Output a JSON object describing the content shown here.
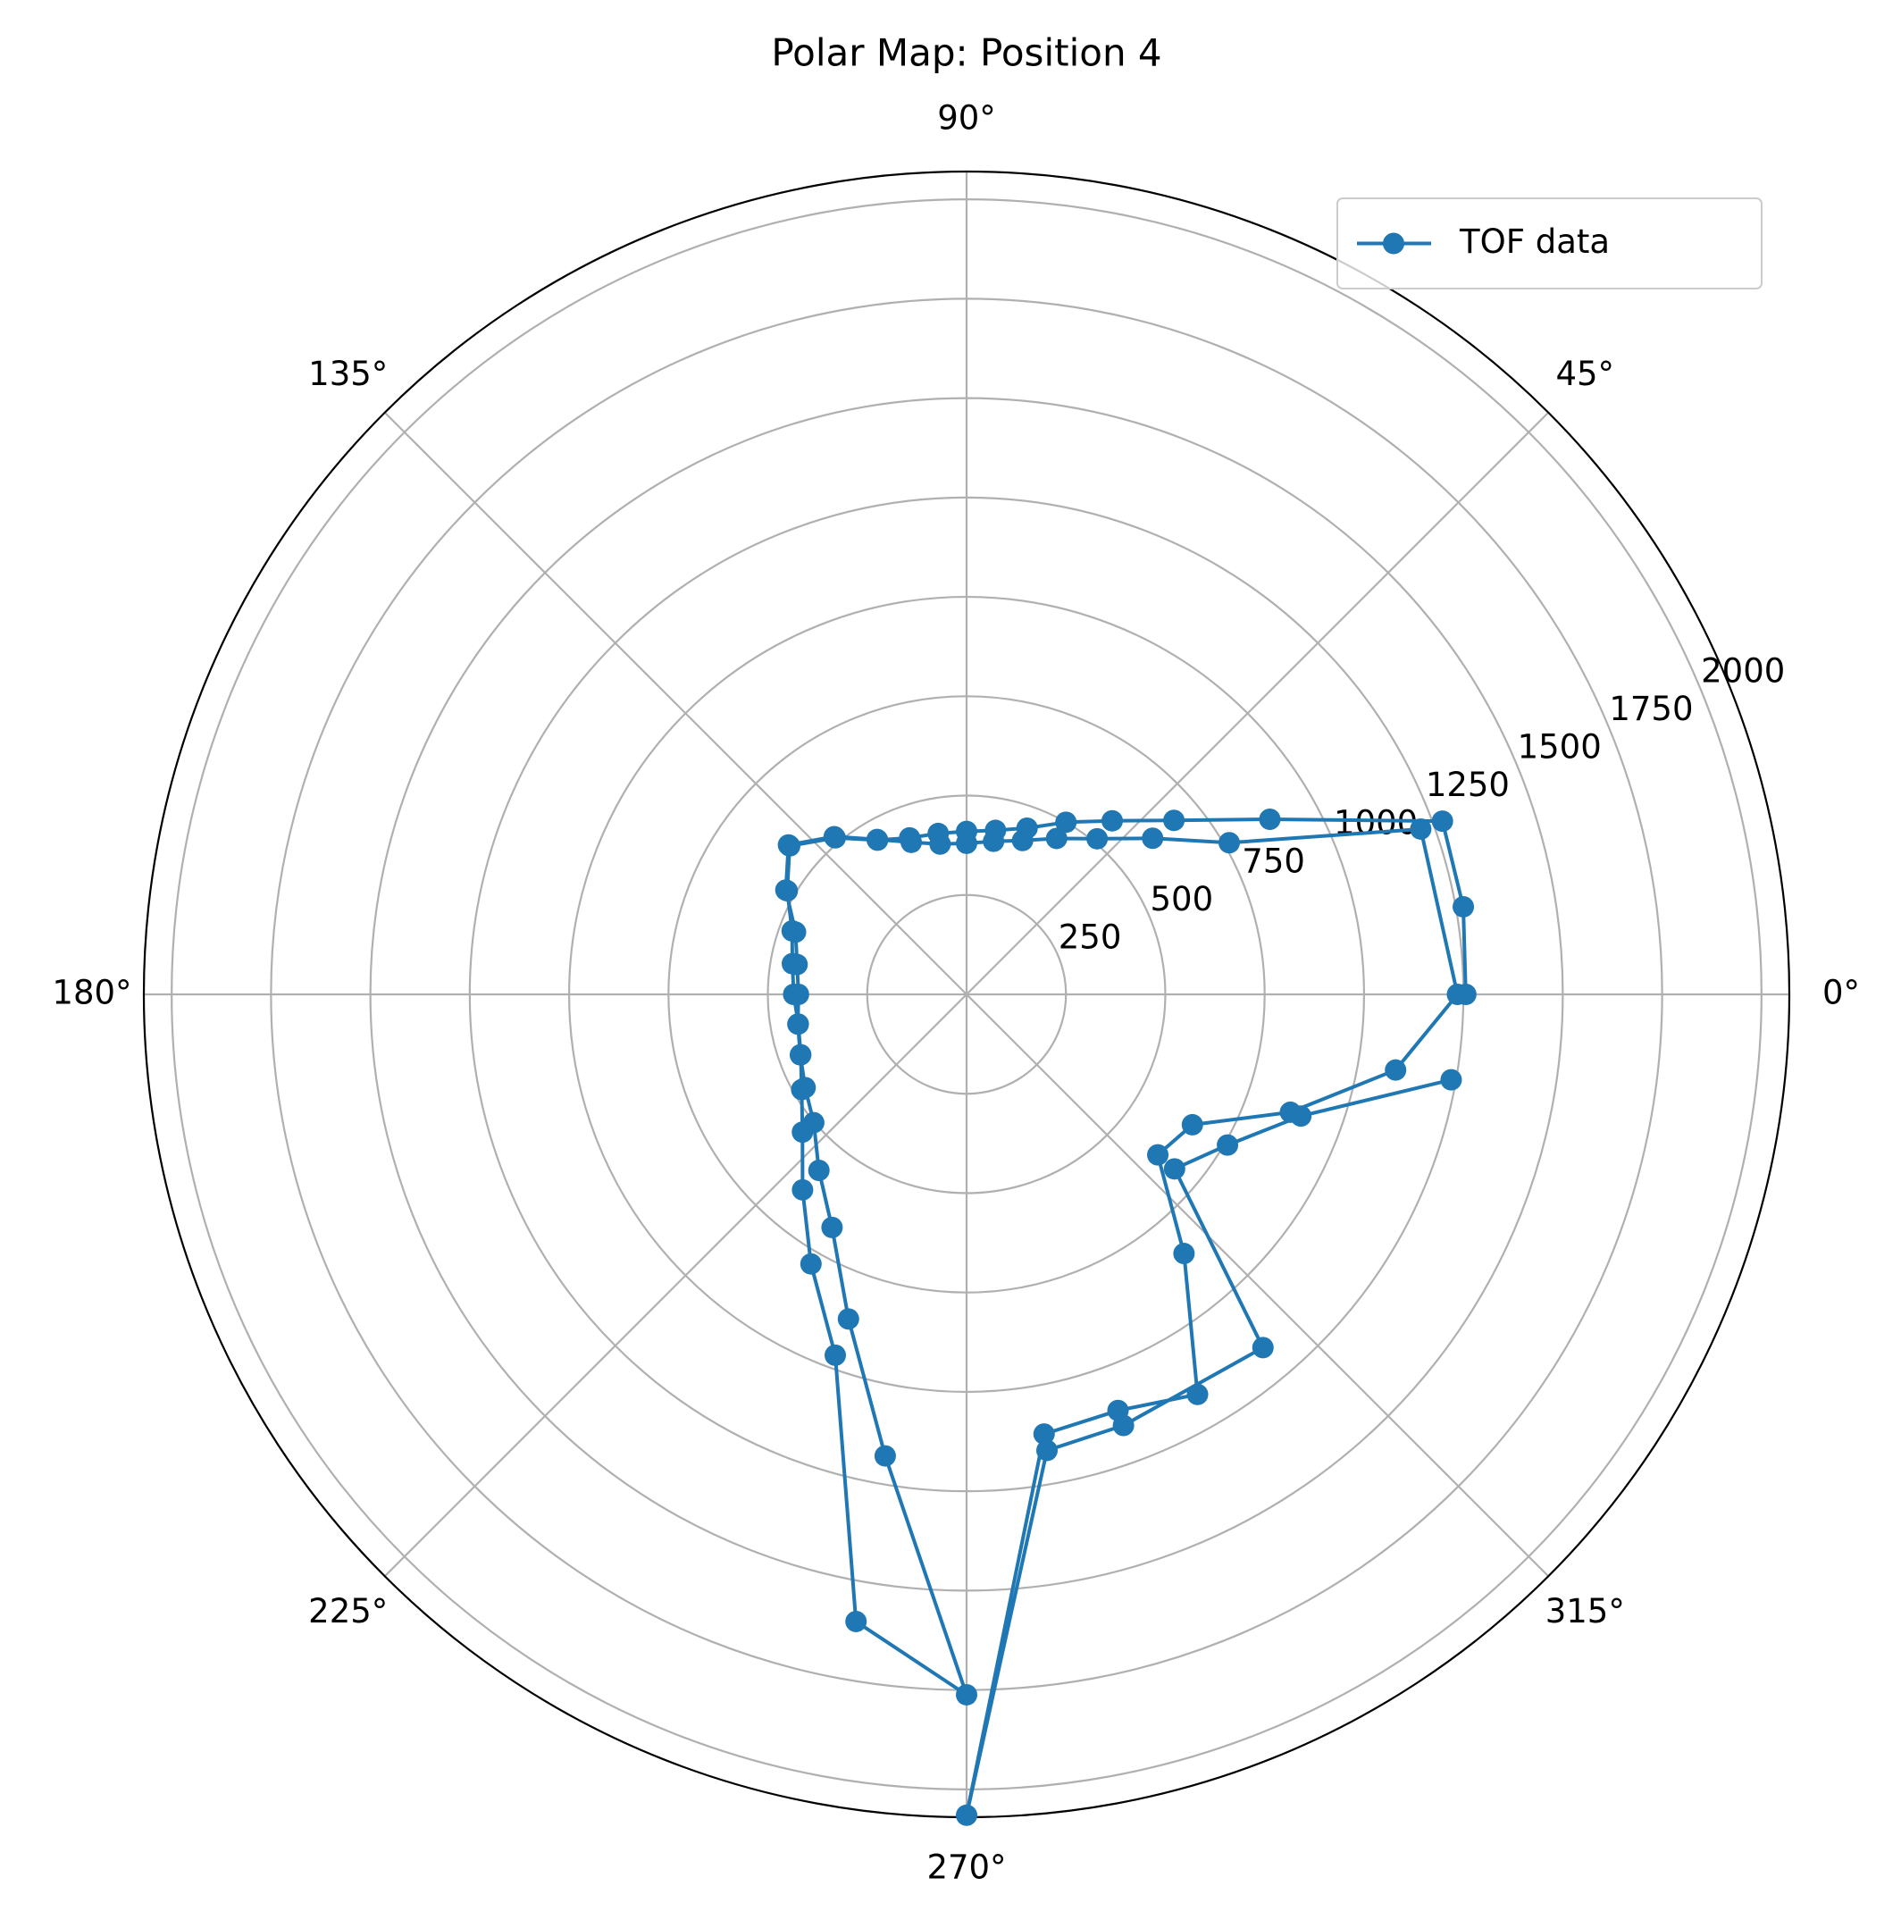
{
  "chart_data": {
    "type": "polar",
    "title": "Polar Map: Position 4",
    "series": [
      {
        "name": "TOF data",
        "color": "#1f77b4",
        "x": [
          0,
          10,
          20,
          30,
          40,
          50,
          60,
          70,
          80,
          90,
          100,
          110,
          120,
          130,
          140,
          150,
          160,
          170,
          180,
          190,
          200,
          210,
          220,
          230,
          240,
          250,
          260,
          270,
          260,
          250,
          240,
          230,
          220,
          210,
          200,
          190,
          180,
          170,
          160,
          150,
          140,
          130,
          120,
          110,
          100,
          90,
          80,
          70,
          60,
          50,
          40,
          30,
          20,
          0,
          350,
          340,
          330,
          320,
          310,
          300,
          290,
          280,
          270,
          280,
          290,
          310,
          320,
          330,
          340,
          350
        ],
        "values": [
          1256,
          1269,
          1274,
          881,
          681,
          570,
          500,
          445,
          419,
          410,
          411,
          419,
          448,
          514,
          581,
          521,
          467,
          445,
          435,
          430,
          444,
          479,
          539,
          642,
          783,
          966,
          1602,
          1762,
          1179,
          869,
          677,
          578,
          502,
          469,
          445,
          431,
          423,
          433,
          458,
          525,
          585,
          518,
          450,
          407,
          384,
          380,
          391,
          412,
          453,
          511,
          611,
          763,
          1216,
          1235,
          1096,
          867,
          656,
          628,
          851,
          1162,
          1114,
          1123,
          2065,
          1165,
          1154,
          1160,
          683,
          758,
          895,
          1238
        ]
      }
    ],
    "ylim": [
      0,
      2070
    ],
    "yticks": [
      250,
      500,
      750,
      1000,
      1250,
      1500,
      1750,
      2000
    ],
    "xticks": [
      {
        "value": 0,
        "label": "0°"
      },
      {
        "value": 45,
        "label": "45°"
      },
      {
        "value": 90,
        "label": "90°"
      },
      {
        "value": 135,
        "label": "135°"
      },
      {
        "value": 180,
        "label": "180°"
      },
      {
        "value": 225,
        "label": "225°"
      },
      {
        "value": 270,
        "label": "270°"
      },
      {
        "value": 315,
        "label": "315°"
      }
    ],
    "grid": true,
    "legend": "upper right"
  }
}
